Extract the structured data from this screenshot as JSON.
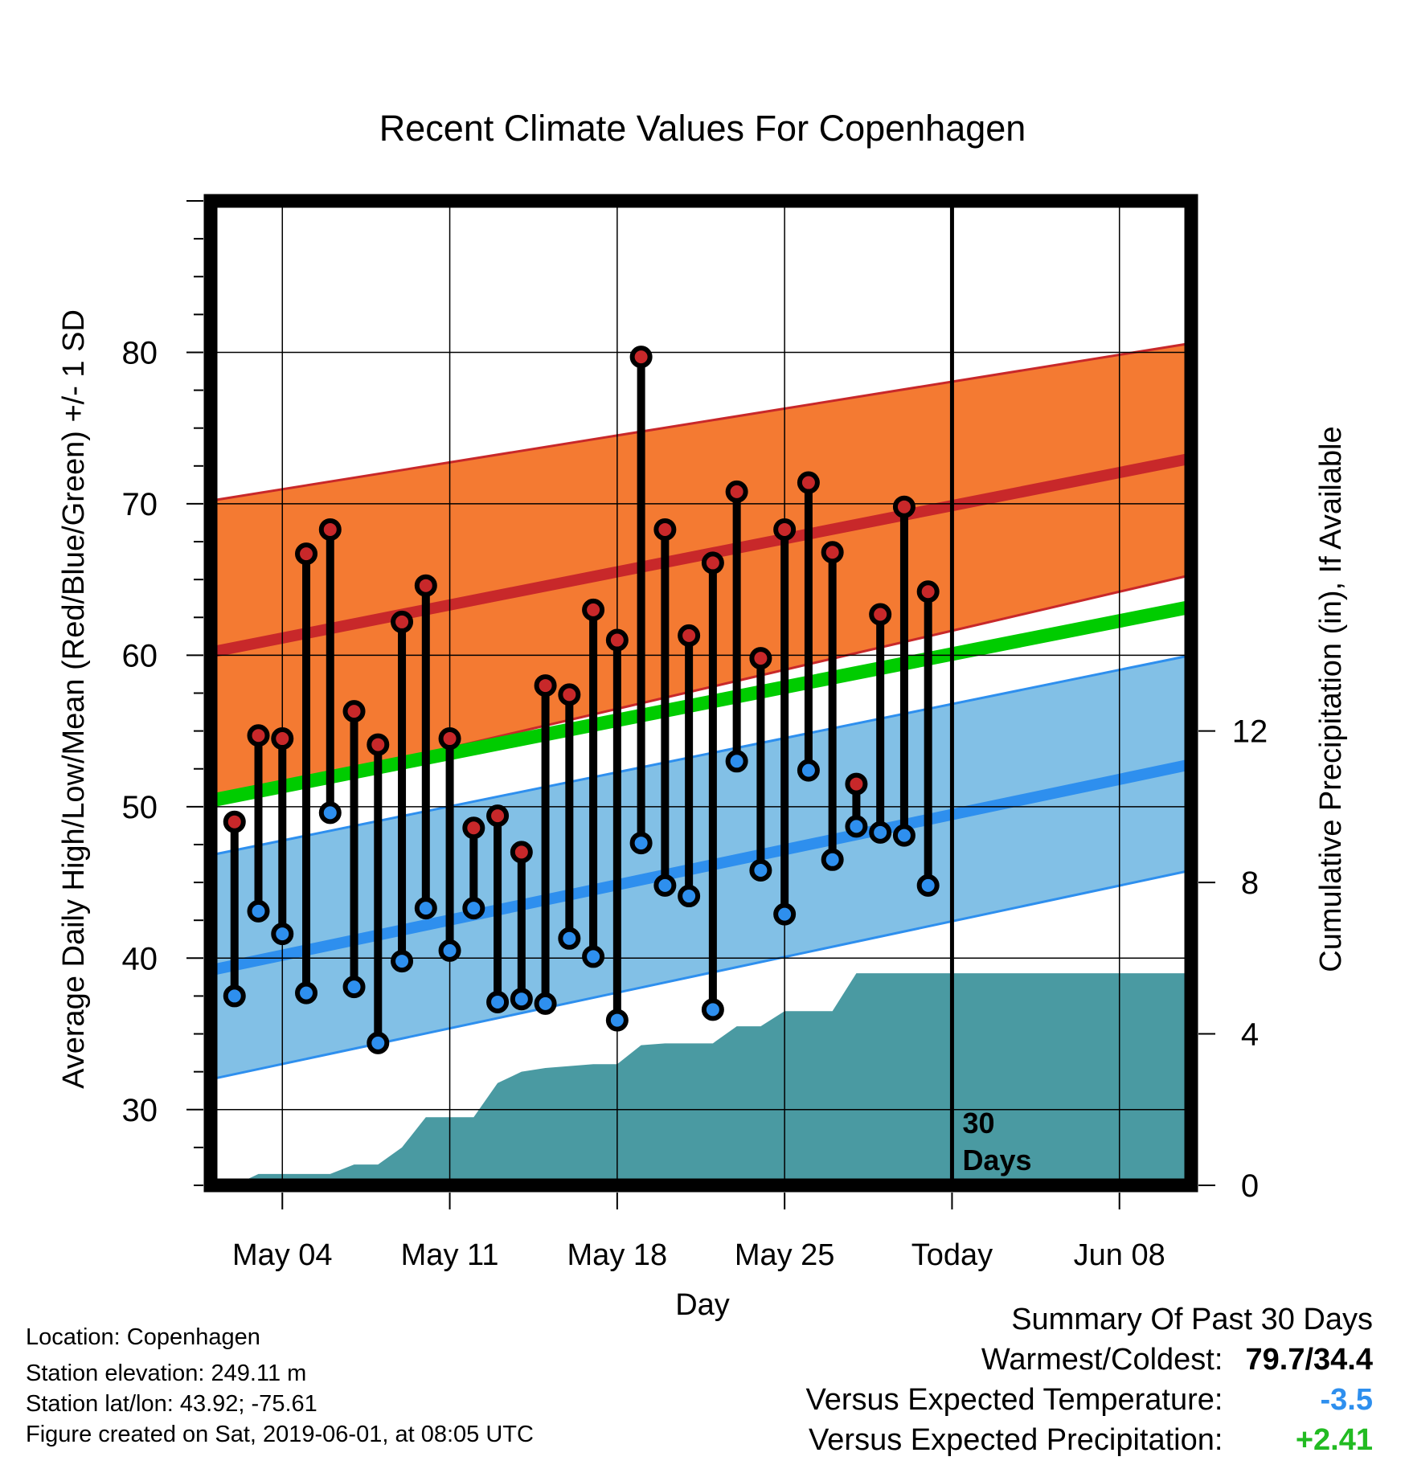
{
  "chart_data": {
    "type": "line",
    "title": "Recent Climate Values For Copenhagen",
    "xlabel": "Day",
    "ylabel": "Average Daily High/Low/Mean (Red/Blue/Green) +/- 1 SD",
    "y2label": "Cumulative Precipitation (in), If Available",
    "x_range": [
      "2019-05-01",
      "2019-06-11"
    ],
    "ylim": [
      25,
      90
    ],
    "y2lim": [
      0,
      26
    ],
    "xticks": [
      {
        "date": "2019-05-04",
        "label": "May 04"
      },
      {
        "date": "2019-05-11",
        "label": "May 11"
      },
      {
        "date": "2019-05-18",
        "label": "May 18"
      },
      {
        "date": "2019-05-25",
        "label": "May 25"
      },
      {
        "date": "2019-06-01",
        "label": "Today"
      },
      {
        "date": "2019-06-08",
        "label": "Jun 08"
      }
    ],
    "yticks": [
      "30",
      "40",
      "50",
      "60",
      "70",
      "80"
    ],
    "y2ticks": [
      "0",
      "4",
      "8",
      "12"
    ],
    "grid": true,
    "today": {
      "date": "2019-06-01",
      "label_line1": "30",
      "label_line2": "Days"
    },
    "normals": {
      "x": [
        "2019-05-01",
        "2019-06-11"
      ],
      "high_mean": [
        60.2,
        73.0
      ],
      "high_upper": [
        70.2,
        80.6
      ],
      "high_lower": [
        50.2,
        65.3
      ],
      "low_mean": [
        39.2,
        52.8
      ],
      "low_upper": [
        46.8,
        60.0
      ],
      "low_lower": [
        32.0,
        45.8
      ],
      "avg_mean": [
        50.4,
        63.2
      ]
    },
    "series": [
      {
        "name": "High",
        "color": "#c8282a",
        "x": [
          "2019-05-02",
          "2019-05-03",
          "2019-05-04",
          "2019-05-05",
          "2019-05-06",
          "2019-05-07",
          "2019-05-08",
          "2019-05-09",
          "2019-05-10",
          "2019-05-11",
          "2019-05-12",
          "2019-05-13",
          "2019-05-14",
          "2019-05-15",
          "2019-05-16",
          "2019-05-17",
          "2019-05-18",
          "2019-05-19",
          "2019-05-20",
          "2019-05-21",
          "2019-05-22",
          "2019-05-23",
          "2019-05-24",
          "2019-05-25",
          "2019-05-26",
          "2019-05-27",
          "2019-05-28",
          "2019-05-29",
          "2019-05-30",
          "2019-05-31"
        ],
        "values": [
          49.0,
          54.7,
          54.5,
          66.7,
          68.3,
          56.3,
          54.1,
          62.2,
          64.6,
          54.5,
          48.6,
          49.4,
          47.0,
          58.0,
          57.4,
          63.0,
          61.0,
          79.7,
          68.3,
          61.3,
          66.1,
          70.8,
          59.8,
          68.3,
          71.4,
          66.8,
          51.5,
          62.7,
          69.8,
          64.2
        ]
      },
      {
        "name": "Low",
        "color": "#2e8fee",
        "x": [
          "2019-05-02",
          "2019-05-03",
          "2019-05-04",
          "2019-05-05",
          "2019-05-06",
          "2019-05-07",
          "2019-05-08",
          "2019-05-09",
          "2019-05-10",
          "2019-05-11",
          "2019-05-12",
          "2019-05-13",
          "2019-05-14",
          "2019-05-15",
          "2019-05-16",
          "2019-05-17",
          "2019-05-18",
          "2019-05-19",
          "2019-05-20",
          "2019-05-21",
          "2019-05-22",
          "2019-05-23",
          "2019-05-24",
          "2019-05-25",
          "2019-05-26",
          "2019-05-27",
          "2019-05-28",
          "2019-05-29",
          "2019-05-30",
          "2019-05-31"
        ],
        "values": [
          37.5,
          43.1,
          41.6,
          37.7,
          49.6,
          38.1,
          34.4,
          39.8,
          43.3,
          40.5,
          43.3,
          37.1,
          37.3,
          37.0,
          41.3,
          40.1,
          35.9,
          47.6,
          44.8,
          44.1,
          36.6,
          53.0,
          45.8,
          42.9,
          52.4,
          46.5,
          48.7,
          48.3,
          48.1,
          44.8
        ]
      },
      {
        "name": "Cumulative Precipitation",
        "color": "#4a9aa2",
        "x": [
          "2019-05-01",
          "2019-05-02",
          "2019-05-03",
          "2019-05-04",
          "2019-05-05",
          "2019-05-06",
          "2019-05-07",
          "2019-05-08",
          "2019-05-09",
          "2019-05-10",
          "2019-05-11",
          "2019-05-12",
          "2019-05-13",
          "2019-05-14",
          "2019-05-15",
          "2019-05-16",
          "2019-05-17",
          "2019-05-18",
          "2019-05-19",
          "2019-05-20",
          "2019-05-21",
          "2019-05-22",
          "2019-05-23",
          "2019-05-24",
          "2019-05-25",
          "2019-05-26",
          "2019-05-27",
          "2019-05-28",
          "2019-05-29",
          "2019-05-30",
          "2019-05-31",
          "2019-06-01",
          "2019-06-11"
        ],
        "values": [
          0.0,
          0.0,
          0.3,
          0.3,
          0.3,
          0.3,
          0.55,
          0.55,
          1.0,
          1.8,
          1.8,
          1.8,
          2.7,
          3.0,
          3.1,
          3.15,
          3.2,
          3.2,
          3.7,
          3.75,
          3.75,
          3.75,
          4.2,
          4.2,
          4.6,
          4.6,
          4.6,
          5.6,
          5.6,
          5.6,
          5.6,
          5.6,
          5.6
        ]
      }
    ]
  },
  "info": {
    "location": "Location: Copenhagen",
    "elevation": "Station elevation: 249.11 m",
    "latlon": "Station lat/lon: 43.92; -75.61",
    "created": "Figure created on Sat, 2019-06-01, at 08:05 UTC"
  },
  "summary": {
    "title": "Summary Of Past 30 Days",
    "warmest_label": "Warmest/Coldest:",
    "warmest_value": "79.7/34.4",
    "temp_label": "Versus Expected Temperature:",
    "temp_value": "-3.5",
    "temp_color": "#2e8fee",
    "precip_label": "Versus Expected Precipitation:",
    "precip_value": "+2.41",
    "precip_color": "#22bb22"
  },
  "colors": {
    "high_band": "#f47a32",
    "high_mean": "#c8282a",
    "low_band": "#82c0e6",
    "low_mean": "#2e8fee",
    "avg_mean": "#00cc00",
    "precip": "#4a9aa2"
  }
}
